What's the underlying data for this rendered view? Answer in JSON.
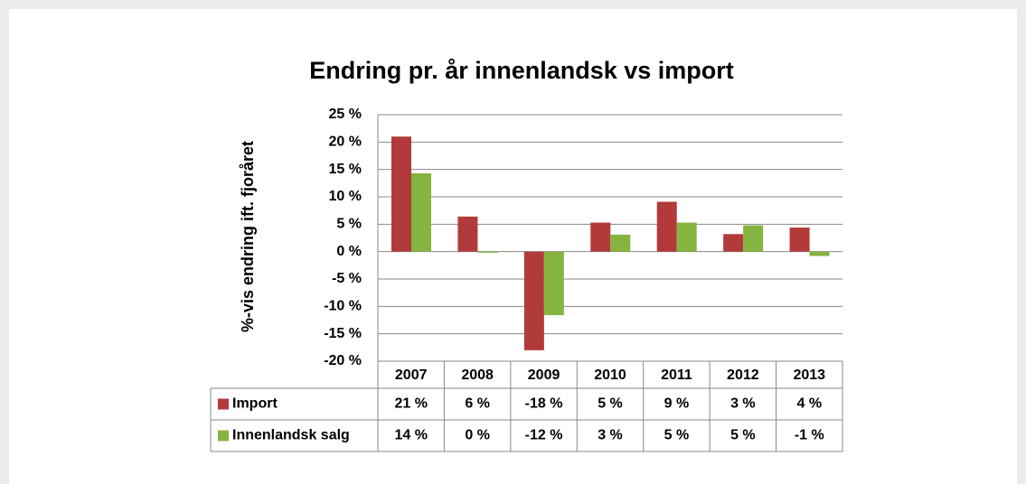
{
  "chart_data": {
    "type": "bar",
    "title": "Endring pr. år innenlandsk vs import",
    "ylabel": "%-vis endring ift. fjoråret",
    "categories": [
      "2007",
      "2008",
      "2009",
      "2010",
      "2011",
      "2012",
      "2013"
    ],
    "series": [
      {
        "name": "Import",
        "color": "#b23a3a",
        "values": [
          21,
          6.4,
          -18,
          5.3,
          9.1,
          3.2,
          4.4
        ],
        "value_labels": [
          "21 %",
          "6 %",
          "-18 %",
          "5 %",
          "9 %",
          "3 %",
          "4 %"
        ]
      },
      {
        "name": "Innenlandsk salg",
        "color": "#86b440",
        "values": [
          14.3,
          -0.2,
          -11.6,
          3.1,
          5.3,
          4.8,
          -0.8
        ],
        "value_labels": [
          "14 %",
          "0 %",
          "-12 %",
          "3 %",
          "5 %",
          "5 %",
          "-1 %"
        ]
      }
    ],
    "ylim": [
      -20,
      25
    ],
    "yticks": [
      {
        "value": 25,
        "label": "25 %"
      },
      {
        "value": 20,
        "label": "20 %"
      },
      {
        "value": 15,
        "label": "15 %"
      },
      {
        "value": 10,
        "label": "10 %"
      },
      {
        "value": 5,
        "label": "5 %"
      },
      {
        "value": 0,
        "label": "0 %"
      },
      {
        "value": -5,
        "label": "-5 %"
      },
      {
        "value": -10,
        "label": "-10 %"
      },
      {
        "value": -15,
        "label": "-15 %"
      },
      {
        "value": -20,
        "label": "-20 %"
      }
    ],
    "grid": true
  }
}
